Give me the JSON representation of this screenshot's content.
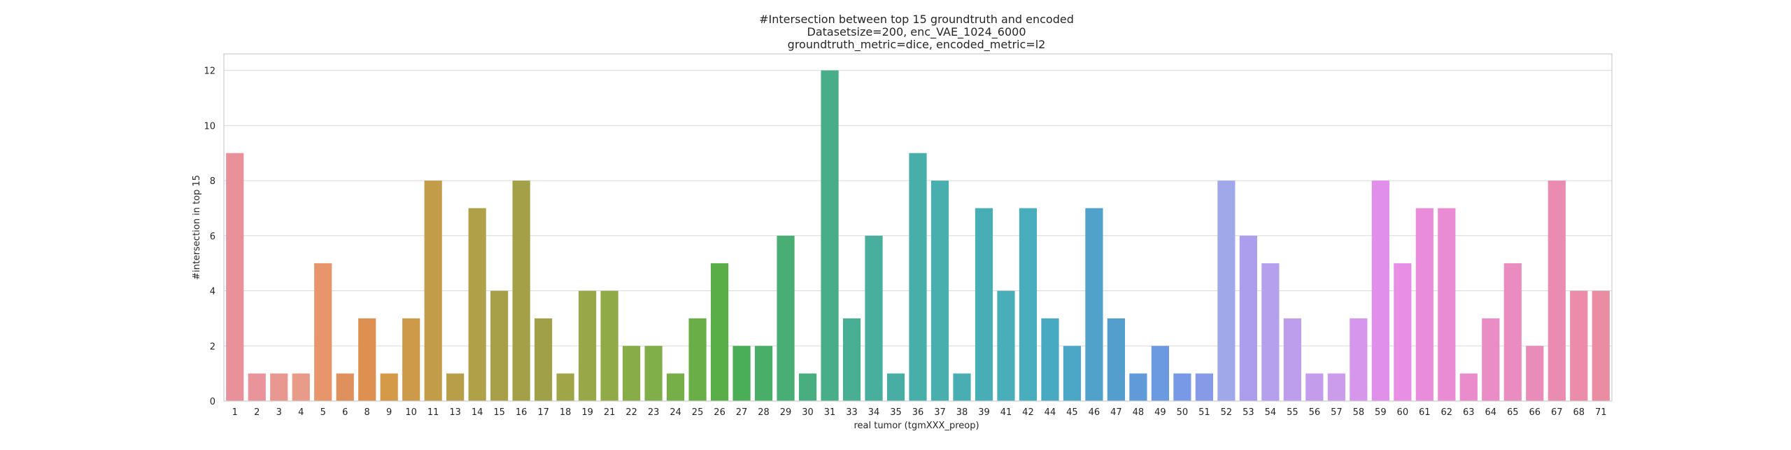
{
  "chart_data": {
    "type": "bar",
    "title_lines": [
      "#Intersection between top 15 groundtruth and encoded",
      "Datasetsize=200, enc_VAE_1024_6000",
      "groundtruth_metric=dice, encoded_metric=l2"
    ],
    "xlabel": "real tumor (tgmXXX_preop)",
    "ylabel": "#intersection in top 15",
    "ylim": [
      0,
      12.6
    ],
    "yticks": [
      0,
      2,
      4,
      6,
      8,
      10,
      12
    ],
    "grid": true,
    "categories": [
      "1",
      "2",
      "3",
      "4",
      "5",
      "6",
      "8",
      "9",
      "10",
      "11",
      "13",
      "14",
      "15",
      "16",
      "17",
      "18",
      "19",
      "21",
      "22",
      "23",
      "24",
      "25",
      "26",
      "27",
      "28",
      "29",
      "30",
      "31",
      "33",
      "34",
      "35",
      "36",
      "37",
      "38",
      "39",
      "41",
      "42",
      "44",
      "45",
      "46",
      "47",
      "48",
      "49",
      "50",
      "51",
      "52",
      "53",
      "54",
      "55",
      "56",
      "57",
      "58",
      "59",
      "60",
      "61",
      "62",
      "63",
      "64",
      "65",
      "66",
      "67",
      "68",
      "71"
    ],
    "values": [
      9,
      1,
      1,
      1,
      5,
      1,
      3,
      1,
      3,
      8,
      1,
      7,
      4,
      8,
      3,
      1,
      4,
      4,
      2,
      2,
      1,
      3,
      5,
      2,
      2,
      6,
      1,
      12,
      3,
      6,
      1,
      9,
      8,
      1,
      7,
      4,
      7,
      3,
      2,
      7,
      3,
      1,
      2,
      1,
      1,
      8,
      6,
      5,
      3,
      1,
      1,
      3,
      8,
      5,
      7,
      7,
      1,
      3,
      5,
      2,
      8,
      4,
      4
    ],
    "colors": [
      "#e8919b",
      "#e8949a",
      "#e89890",
      "#e89b88",
      "#e8956c",
      "#e0905c",
      "#dd9050",
      "#d49a48",
      "#cc9a48",
      "#c29c48",
      "#b89e48",
      "#b0a048",
      "#a8a048",
      "#a4a048",
      "#a0a048",
      "#a0a648",
      "#98a848",
      "#90aa48",
      "#88ac48",
      "#80ae48",
      "#76ae48",
      "#6aae48",
      "#5aae48",
      "#4aae58",
      "#48ae68",
      "#48ae74",
      "#48ae80",
      "#48ae8a",
      "#48ae94",
      "#48ae9e",
      "#48aea4",
      "#48aeaa",
      "#48aeae",
      "#48aeb2",
      "#48aeb6",
      "#48aeba",
      "#48aebe",
      "#48aac2",
      "#4ca6c6",
      "#50a2ca",
      "#549ece",
      "#609ad8",
      "#6c9ae0",
      "#789ae6",
      "#869ae8",
      "#a0a8ea",
      "#ac9eec",
      "#b4a0ec",
      "#bc9eec",
      "#c49cec",
      "#cc9cec",
      "#d696ec",
      "#e090ea",
      "#e88ee4",
      "#ea8cdc",
      "#ea8cd4",
      "#ea8ccc",
      "#ea8cc6",
      "#ea8cc0",
      "#ea8cba",
      "#ea8cb2",
      "#ea8caa",
      "#ea8ca2"
    ]
  }
}
